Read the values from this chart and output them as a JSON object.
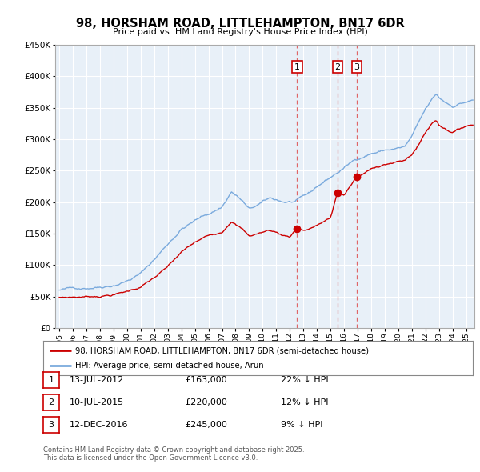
{
  "title": "98, HORSHAM ROAD, LITTLEHAMPTON, BN17 6DR",
  "subtitle": "Price paid vs. HM Land Registry's House Price Index (HPI)",
  "ylim": [
    0,
    450000
  ],
  "xlim_start": 1994.7,
  "xlim_end": 2025.6,
  "red_color": "#cc0000",
  "blue_color": "#7aaadd",
  "vline_color": "#dd4444",
  "plot_bg_color": "#e8f0f8",
  "background_color": "#ffffff",
  "grid_color": "#ffffff",
  "purchases": [
    {
      "date_num": 2012.53,
      "price": 163000,
      "label": "1"
    },
    {
      "date_num": 2015.52,
      "price": 220000,
      "label": "2"
    },
    {
      "date_num": 2016.95,
      "price": 245000,
      "label": "3"
    }
  ],
  "legend_entries": [
    {
      "color": "#cc0000",
      "label": "98, HORSHAM ROAD, LITTLEHAMPTON, BN17 6DR (semi-detached house)"
    },
    {
      "color": "#7aaadd",
      "label": "HPI: Average price, semi-detached house, Arun"
    }
  ],
  "table_rows": [
    {
      "num": "1",
      "date": "13-JUL-2012",
      "price": "£163,000",
      "hpi": "22% ↓ HPI"
    },
    {
      "num": "2",
      "date": "10-JUL-2015",
      "price": "£220,000",
      "hpi": "12% ↓ HPI"
    },
    {
      "num": "3",
      "date": "12-DEC-2016",
      "price": "£245,000",
      "hpi": "9% ↓ HPI"
    }
  ],
  "footnote": "Contains HM Land Registry data © Crown copyright and database right 2025.\nThis data is licensed under the Open Government Licence v3.0."
}
